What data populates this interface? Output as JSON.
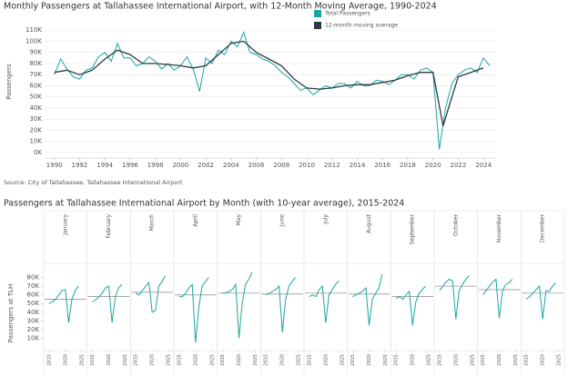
{
  "chart_data": [
    {
      "type": "line",
      "title": "Monthly Passengers at Tallahassee International Airport, with 12-Month Moving Average, 1990-2024",
      "ylabel": "Passengers",
      "source": "Source: City of Tallahassee, Tallahassee International Airport",
      "xlim": [
        1989.3,
        2025
      ],
      "xticks": [
        1990,
        1992,
        1994,
        1996,
        1998,
        2000,
        2002,
        2004,
        2006,
        2008,
        2010,
        2012,
        2014,
        2016,
        2018,
        2020,
        2022,
        2024
      ],
      "ylim": [
        0,
        115000
      ],
      "yticks": [
        {
          "value": 0,
          "label": "0K"
        },
        {
          "value": 10000,
          "label": "10K"
        },
        {
          "value": 20000,
          "label": "20K"
        },
        {
          "value": 30000,
          "label": "30K"
        },
        {
          "value": 40000,
          "label": "40K"
        },
        {
          "value": 50000,
          "label": "50K"
        },
        {
          "value": 60000,
          "label": "60K"
        },
        {
          "value": 70000,
          "label": "70K"
        },
        {
          "value": 80000,
          "label": "80K"
        },
        {
          "value": 90000,
          "label": "90K"
        },
        {
          "value": 100000,
          "label": "100K"
        },
        {
          "value": 110000,
          "label": "110K"
        }
      ],
      "grid": true,
      "series": [
        {
          "name": "Total Passengers",
          "color": "#1aa6a0",
          "x": [
            1990,
            1990.5,
            1991,
            1991.5,
            1992,
            1992.5,
            1993,
            1993.5,
            1994,
            1994.5,
            1995,
            1995.5,
            1996,
            1996.5,
            1997,
            1997.5,
            1998,
            1998.5,
            1999,
            1999.5,
            2000,
            2000.5,
            2001,
            2001.5,
            2002,
            2002.5,
            2003,
            2003.5,
            2004,
            2004.5,
            2005,
            2005.5,
            2006,
            2006.5,
            2007,
            2007.5,
            2008,
            2008.5,
            2009,
            2009.5,
            2010,
            2010.5,
            2011,
            2011.5,
            2012,
            2012.5,
            2013,
            2013.5,
            2014,
            2014.5,
            2015,
            2015.5,
            2016,
            2016.5,
            2017,
            2017.5,
            2018,
            2018.5,
            2019,
            2019.5,
            2020,
            2020.5,
            2021,
            2021.5,
            2022,
            2022.5,
            2023,
            2023.5,
            2024,
            2024.5
          ],
          "values": [
            70000,
            84000,
            75000,
            68000,
            66000,
            74000,
            76000,
            86000,
            90000,
            82000,
            98000,
            85000,
            85000,
            78000,
            80000,
            86000,
            82000,
            75000,
            80000,
            74000,
            78000,
            86000,
            75000,
            55000,
            85000,
            80000,
            92000,
            88000,
            100000,
            95000,
            108000,
            90000,
            88000,
            84000,
            82000,
            78000,
            72000,
            68000,
            62000,
            56000,
            58000,
            52000,
            56000,
            60000,
            58000,
            62000,
            62000,
            58000,
            64000,
            60000,
            60000,
            65000,
            64000,
            61000,
            65000,
            70000,
            70000,
            66000,
            74000,
            76000,
            72000,
            3000,
            40000,
            62000,
            70000,
            74000,
            76000,
            72000,
            85000,
            78000
          ]
        },
        {
          "name": "12-month moving average",
          "color": "#2d3a44",
          "x": [
            1990,
            1991,
            1992,
            1993,
            1994,
            1995,
            1996,
            1997,
            1998,
            1999,
            2000,
            2001,
            2002,
            2003,
            2004,
            2005,
            2006,
            2007,
            2008,
            2009,
            2010,
            2011,
            2012,
            2013,
            2014,
            2015,
            2016,
            2017,
            2018,
            2019,
            2020,
            2020.8,
            2021.5,
            2022,
            2023,
            2024
          ],
          "values": [
            72000,
            74000,
            70000,
            74000,
            84000,
            92000,
            88000,
            80000,
            80000,
            79000,
            78000,
            76000,
            78000,
            88000,
            98000,
            100000,
            90000,
            84000,
            78000,
            66000,
            58000,
            57000,
            58000,
            60000,
            61000,
            61000,
            63000,
            65000,
            69000,
            72000,
            72000,
            24000,
            50000,
            68000,
            72000,
            76000
          ]
        }
      ]
    },
    {
      "type": "small-multiples",
      "title": "Passengers at Tallahassee International Airport by Month (with 10-year average),  2015-2024",
      "ylabel": "Passengers at TLH",
      "x": [
        2015,
        2016,
        2017,
        2018,
        2019,
        2020,
        2021,
        2022,
        2023,
        2024
      ],
      "xlim": [
        2014.2,
        2025.8
      ],
      "xticks": [
        2015,
        2020,
        2025
      ],
      "ylim": [
        0,
        90000
      ],
      "yticks": [
        {
          "value": 10000,
          "label": "10K"
        },
        {
          "value": 20000,
          "label": "20K"
        },
        {
          "value": 30000,
          "label": "30K"
        },
        {
          "value": 40000,
          "label": "40K"
        },
        {
          "value": 50000,
          "label": "50K"
        },
        {
          "value": 60000,
          "label": "60K"
        },
        {
          "value": 70000,
          "label": "70K"
        },
        {
          "value": 80000,
          "label": "80K"
        }
      ],
      "color": "#1aa6a0",
      "average_color": "#999999",
      "panels": [
        {
          "name": "January",
          "values": [
            50000,
            52000,
            55000,
            60000,
            65000,
            66000,
            28000,
            55000,
            65000,
            70000
          ],
          "average": 55000
        },
        {
          "name": "February",
          "values": [
            52000,
            54000,
            58000,
            62000,
            68000,
            70000,
            28000,
            58000,
            68000,
            72000
          ],
          "average": 58000
        },
        {
          "name": "March",
          "values": [
            62000,
            60000,
            65000,
            70000,
            74000,
            40000,
            42000,
            70000,
            75000,
            82000
          ],
          "average": 63000
        },
        {
          "name": "April",
          "values": [
            58000,
            58000,
            62000,
            68000,
            72000,
            5000,
            45000,
            70000,
            75000,
            80000
          ],
          "average": 60000
        },
        {
          "name": "May",
          "values": [
            62000,
            62000,
            64000,
            66000,
            72000,
            10000,
            50000,
            72000,
            78000,
            86000
          ],
          "average": 62000
        },
        {
          "name": "June",
          "values": [
            60000,
            62000,
            64000,
            66000,
            70000,
            17000,
            55000,
            70000,
            75000,
            80000
          ],
          "average": 61000
        },
        {
          "name": "July",
          "values": [
            58000,
            60000,
            58000,
            66000,
            70000,
            28000,
            60000,
            66000,
            72000,
            76000
          ],
          "average": 62000
        },
        {
          "name": "August",
          "values": [
            58000,
            60000,
            62000,
            64000,
            68000,
            25000,
            55000,
            62000,
            68000,
            84000
          ],
          "average": 61000
        },
        {
          "name": "September",
          "values": [
            56000,
            58000,
            55000,
            60000,
            64000,
            25000,
            52000,
            62000,
            66000,
            70000
          ],
          "average": 58000
        },
        {
          "name": "October",
          "values": [
            65000,
            70000,
            75000,
            78000,
            76000,
            32000,
            65000,
            72000,
            78000,
            82000
          ],
          "average": 70000
        },
        {
          "name": "November",
          "values": [
            60000,
            65000,
            70000,
            75000,
            78000,
            33000,
            65000,
            72000,
            74000,
            78000
          ],
          "average": 66000
        },
        {
          "name": "December",
          "values": [
            55000,
            58000,
            62000,
            66000,
            70000,
            32000,
            65000,
            64000,
            70000,
            74000
          ],
          "average": 62000
        }
      ]
    }
  ]
}
